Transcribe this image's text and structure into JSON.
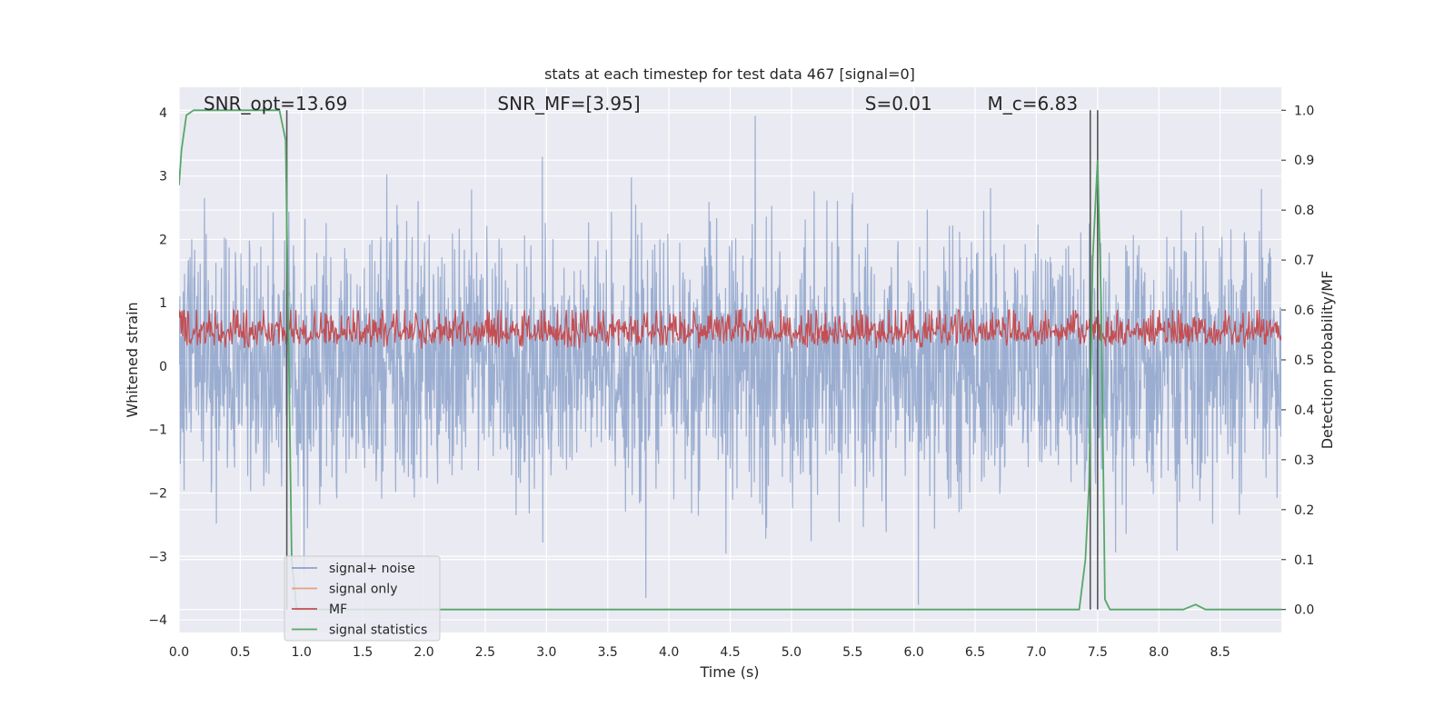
{
  "chart_data": {
    "type": "line",
    "title": "stats at each timestep for test data 467 [signal=0]",
    "xlabel": "Time (s)",
    "ylabel": "Whitened strain",
    "y2label": "Detection probability/MF",
    "xlim": [
      0,
      9.0
    ],
    "ylim": [
      -4.2,
      4.4
    ],
    "y2lim": [
      -0.046,
      1.046
    ],
    "x_ticks": [
      0.0,
      0.5,
      1.0,
      1.5,
      2.0,
      2.5,
      3.0,
      3.5,
      4.0,
      4.5,
      5.0,
      5.5,
      6.0,
      6.5,
      7.0,
      7.5,
      8.0,
      8.5
    ],
    "x_tick_labels": [
      "0.0",
      "0.5",
      "1.0",
      "1.5",
      "2.0",
      "2.5",
      "3.0",
      "3.5",
      "4.0",
      "4.5",
      "5.0",
      "5.5",
      "6.0",
      "6.5",
      "7.0",
      "7.5",
      "8.0",
      "8.5"
    ],
    "y_ticks": [
      4,
      3,
      2,
      1,
      0,
      -1,
      -2,
      -3,
      -4
    ],
    "y_tick_labels": [
      "4",
      "3",
      "2",
      "1",
      "0",
      "−1",
      "−2",
      "−3",
      "−4"
    ],
    "y2_ticks": [
      1.0,
      0.9,
      0.8,
      0.7,
      0.6,
      0.5,
      0.4,
      0.3,
      0.2,
      0.1,
      0.0
    ],
    "y2_tick_labels": [
      "1.0",
      "0.9",
      "0.8",
      "0.7",
      "0.6",
      "0.5",
      "0.4",
      "0.3",
      "0.2",
      "0.1",
      "0.0"
    ],
    "grid": true,
    "legend_position": "lower-left",
    "annotations": [
      {
        "text": "SNR_opt=13.69",
        "x": 0.2
      },
      {
        "text": "SNR_MF=[3.95]",
        "x": 2.6
      },
      {
        "text": "S=0.01",
        "x": 5.6
      },
      {
        "text": "M_c=6.83",
        "x": 6.6
      }
    ],
    "series": [
      {
        "name": "signal+ noise",
        "color": "#4c72b0",
        "opacity": 0.5,
        "axis": "left",
        "noise_envelope": [
          -2.6,
          2.9
        ]
      },
      {
        "name": "signal only",
        "color": "#dd8452",
        "axis": "left",
        "values": []
      },
      {
        "name": "MF",
        "color": "#c44e52",
        "axis": "right",
        "band": [
          0.5,
          0.6
        ]
      },
      {
        "name": "signal statistics",
        "color": "#55a868",
        "axis": "right",
        "x": [
          0.0,
          0.02,
          0.06,
          0.12,
          0.3,
          0.5,
          0.7,
          0.82,
          0.87,
          0.89,
          0.92,
          0.96,
          1.0,
          1.5,
          2.0,
          3.0,
          4.0,
          5.0,
          6.0,
          7.0,
          7.35,
          7.4,
          7.43,
          7.46,
          7.5,
          7.53,
          7.56,
          7.6,
          7.65,
          7.8,
          8.0,
          8.2,
          8.3,
          8.38,
          8.5,
          9.0
        ],
        "values": [
          0.85,
          0.92,
          0.99,
          1.0,
          1.0,
          1.0,
          1.0,
          1.0,
          0.94,
          0.6,
          0.1,
          0.0,
          0.0,
          0.0,
          0.0,
          0.0,
          0.0,
          0.0,
          0.0,
          0.0,
          0.0,
          0.1,
          0.25,
          0.7,
          0.9,
          0.6,
          0.02,
          0.0,
          0.0,
          0.0,
          0.0,
          0.0,
          0.01,
          0.0,
          0.0,
          0.0
        ]
      }
    ],
    "vertical_lines": [
      {
        "x": 0.88,
        "color": "#555555"
      },
      {
        "x": 7.44,
        "color": "#555555"
      },
      {
        "x": 7.5,
        "color": "#555555"
      }
    ]
  }
}
